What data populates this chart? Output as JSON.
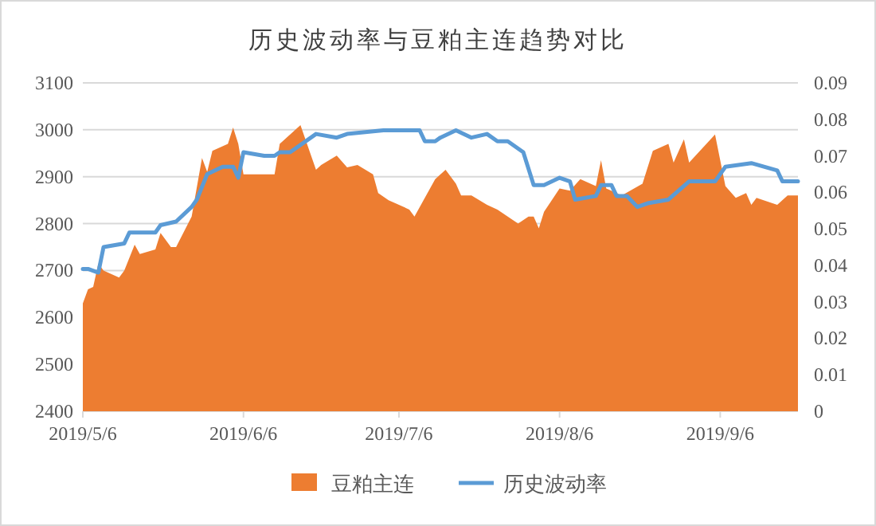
{
  "chart_data": {
    "type": "area",
    "title": "历史波动率与豆粕主连趋势对比",
    "series": [
      {
        "name": "豆粕主连",
        "color": "#ed7d31",
        "x": [
          "2019-05-06",
          "2019-05-07",
          "2019-05-08",
          "2019-05-09",
          "2019-05-10",
          "2019-05-13",
          "2019-05-14",
          "2019-05-16",
          "2019-05-17",
          "2019-05-20",
          "2019-05-21",
          "2019-05-23",
          "2019-05-24",
          "2019-05-27",
          "2019-05-29",
          "2019-05-30",
          "2019-05-31",
          "2019-06-03",
          "2019-06-04",
          "2019-06-05",
          "2019-06-06",
          "2019-06-12",
          "2019-06-13",
          "2019-06-17",
          "2019-06-20",
          "2019-06-21",
          "2019-06-24",
          "2019-06-26",
          "2019-06-28",
          "2019-07-01",
          "2019-07-02",
          "2019-07-04",
          "2019-07-06",
          "2019-07-08",
          "2019-07-09",
          "2019-07-13",
          "2019-07-15",
          "2019-07-17",
          "2019-07-18",
          "2019-07-20",
          "2019-07-23",
          "2019-07-25",
          "2019-07-29",
          "2019-07-31",
          "2019-08-01",
          "2019-08-02",
          "2019-08-03",
          "2019-08-06",
          "2019-08-08",
          "2019-08-10",
          "2019-08-13",
          "2019-08-14",
          "2019-08-15",
          "2019-08-18",
          "2019-08-22",
          "2019-08-24",
          "2019-08-27",
          "2019-08-28",
          "2019-08-30",
          "2019-08-31",
          "2019-09-05",
          "2019-09-07",
          "2019-09-09",
          "2019-09-11",
          "2019-09-12",
          "2019-09-13",
          "2019-09-17",
          "2019-09-19",
          "2019-09-21"
        ],
        "values": [
          2630,
          2660,
          2665,
          2715,
          2700,
          2685,
          2700,
          2755,
          2735,
          2745,
          2780,
          2750,
          2750,
          2815,
          2940,
          2910,
          2955,
          2970,
          3005,
          2970,
          2905,
          2905,
          2970,
          3010,
          2915,
          2925,
          2945,
          2920,
          2925,
          2905,
          2865,
          2850,
          2840,
          2830,
          2815,
          2895,
          2915,
          2885,
          2860,
          2860,
          2840,
          2830,
          2800,
          2815,
          2815,
          2790,
          2825,
          2875,
          2870,
          2895,
          2880,
          2935,
          2875,
          2860,
          2885,
          2955,
          2970,
          2930,
          2980,
          2930,
          2990,
          2880,
          2855,
          2865,
          2840,
          2855,
          2840,
          2860,
          2860
        ]
      },
      {
        "name": "历史波动率",
        "type": "line",
        "axis": "y2",
        "color": "#5b9bd5",
        "x": [
          "2019-05-06",
          "2019-05-07",
          "2019-05-09",
          "2019-05-10",
          "2019-05-14",
          "2019-05-15",
          "2019-05-17",
          "2019-05-20",
          "2019-05-21",
          "2019-05-24",
          "2019-05-27",
          "2019-05-28",
          "2019-05-30",
          "2019-06-02",
          "2019-06-04",
          "2019-06-05",
          "2019-06-06",
          "2019-06-10",
          "2019-06-12",
          "2019-06-13",
          "2019-06-15",
          "2019-06-20",
          "2019-06-24",
          "2019-06-26",
          "2019-07-03",
          "2019-07-10",
          "2019-07-11",
          "2019-07-13",
          "2019-07-14",
          "2019-07-17",
          "2019-07-20",
          "2019-07-23",
          "2019-07-25",
          "2019-07-27",
          "2019-07-30",
          "2019-08-01",
          "2019-08-03",
          "2019-08-06",
          "2019-08-08",
          "2019-08-09",
          "2019-08-13",
          "2019-08-14",
          "2019-08-16",
          "2019-08-17",
          "2019-08-19",
          "2019-08-21",
          "2019-08-23",
          "2019-08-27",
          "2019-08-31",
          "2019-09-05",
          "2019-09-07",
          "2019-09-12",
          "2019-09-17",
          "2019-09-18",
          "2019-09-21"
        ],
        "values": [
          0.039,
          0.039,
          0.038,
          0.045,
          0.046,
          0.049,
          0.049,
          0.049,
          0.051,
          0.052,
          0.056,
          0.058,
          0.065,
          0.067,
          0.067,
          0.064,
          0.071,
          0.07,
          0.07,
          0.071,
          0.071,
          0.076,
          0.075,
          0.076,
          0.077,
          0.077,
          0.074,
          0.074,
          0.075,
          0.077,
          0.075,
          0.076,
          0.074,
          0.074,
          0.071,
          0.062,
          0.062,
          0.064,
          0.063,
          0.058,
          0.059,
          0.062,
          0.062,
          0.059,
          0.059,
          0.056,
          0.057,
          0.058,
          0.063,
          0.063,
          0.067,
          0.068,
          0.066,
          0.063,
          0.063
        ]
      }
    ],
    "xlim": [
      "2019-05-06",
      "2019-09-21"
    ],
    "xticks": [
      {
        "value": "2019-05-06",
        "label": "2019/5/6"
      },
      {
        "value": "2019-06-06",
        "label": "2019/6/6"
      },
      {
        "value": "2019-07-06",
        "label": "2019/7/6"
      },
      {
        "value": "2019-08-06",
        "label": "2019/8/6"
      },
      {
        "value": "2019-09-06",
        "label": "2019/9/6"
      }
    ],
    "ylim": [
      2400,
      3100
    ],
    "yticks": [
      2400,
      2500,
      2600,
      2700,
      2800,
      2900,
      3000,
      3100
    ],
    "y2lim": [
      0,
      0.09
    ],
    "y2ticks": [
      0,
      0.01,
      0.02,
      0.03,
      0.04,
      0.05,
      0.06,
      0.07,
      0.08,
      0.09
    ],
    "grid": "y",
    "legend": "bottom"
  }
}
